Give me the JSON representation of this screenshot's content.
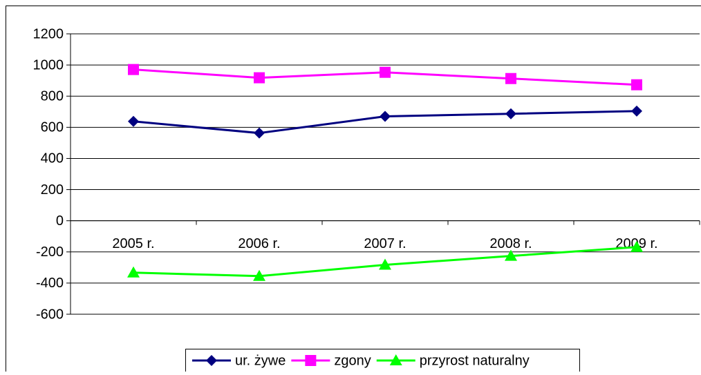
{
  "chart_data": {
    "type": "line",
    "categories": [
      "2005 r.",
      "2006 r.",
      "2007 r.",
      "2008 r.",
      "2009 r."
    ],
    "series": [
      {
        "name": "ur. żywe",
        "color": "#000080",
        "marker": "diamond",
        "values": [
          638,
          563,
          670,
          687,
          704
        ]
      },
      {
        "name": "zgony",
        "color": "#ff00ff",
        "marker": "square",
        "values": [
          971,
          918,
          953,
          913,
          873
        ]
      },
      {
        "name": "przyrost naturalny",
        "color": "#00ff00",
        "marker": "triangle",
        "values": [
          -333,
          -355,
          -283,
          -226,
          -169
        ]
      }
    ],
    "ylim": [
      -600,
      1200
    ],
    "yticks": [
      -600,
      -400,
      -200,
      0,
      200,
      400,
      600,
      800,
      1000,
      1200
    ],
    "grid": true,
    "legend": "bottom"
  }
}
